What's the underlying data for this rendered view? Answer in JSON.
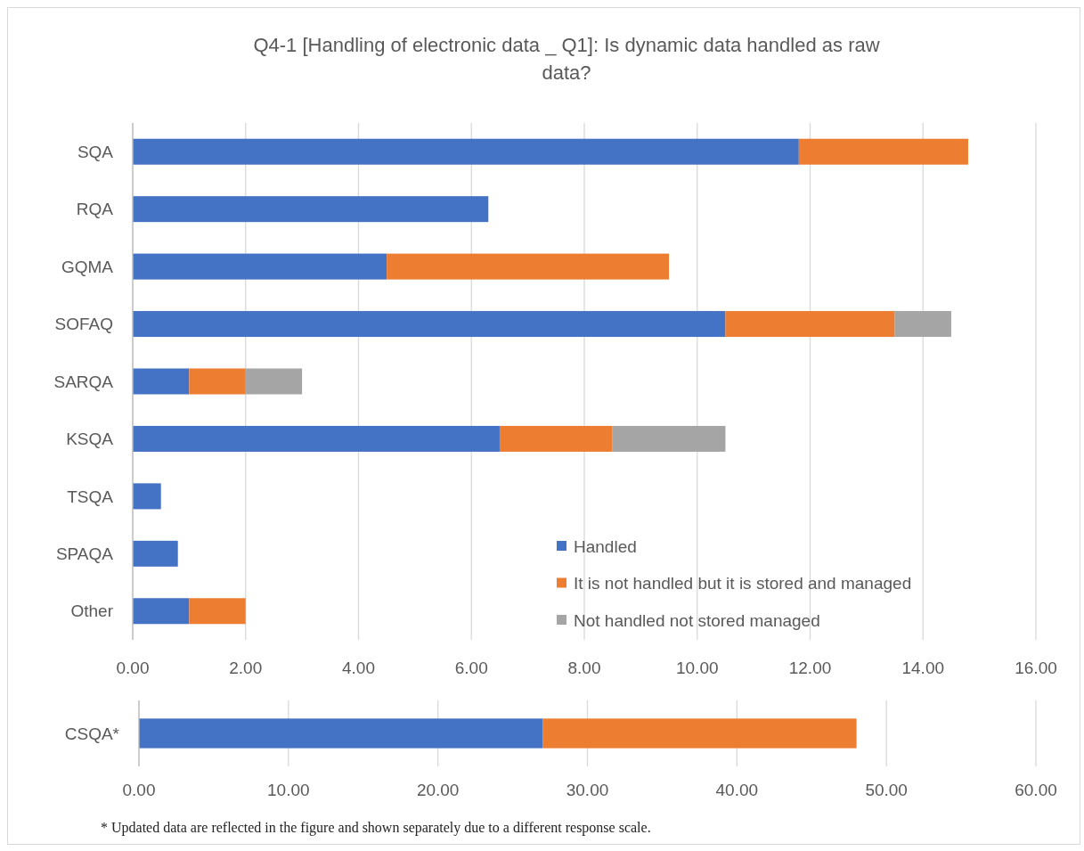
{
  "chart_data": [
    {
      "type": "bar",
      "orientation": "horizontal",
      "stacked": true,
      "title": "Q4-1 [Handling of electronic data _ Q1]: Is dynamic data handled as raw data?",
      "categories": [
        "SQA",
        "RQA",
        "GQMA",
        "SOFAQ",
        "SARQA",
        "KSQA",
        "TSQA",
        "SPAQA",
        "Other"
      ],
      "series": [
        {
          "name": "Handled",
          "color": "#4472c4",
          "values": [
            11.8,
            6.3,
            4.5,
            10.5,
            1,
            6.5,
            0.5,
            0.8,
            1
          ]
        },
        {
          "name": "It is not handled but it is stored and managed",
          "color": "#ed7d31",
          "values": [
            3,
            null,
            5,
            3,
            1,
            2,
            null,
            null,
            1
          ]
        },
        {
          "name": "Not handled not stored  managed",
          "color": "#a5a5a5",
          "values": [
            null,
            null,
            null,
            1,
            1,
            2,
            null,
            null,
            null
          ]
        }
      ],
      "xlim": [
        0,
        16
      ],
      "xticks": [
        {
          "value": 0,
          "label": "0.00"
        },
        {
          "value": 2,
          "label": "2.00"
        },
        {
          "value": 4,
          "label": "4.00"
        },
        {
          "value": 6,
          "label": "6.00"
        },
        {
          "value": 8,
          "label": "8.00"
        },
        {
          "value": 10,
          "label": "10.00"
        },
        {
          "value": 12,
          "label": "12.00"
        },
        {
          "value": 14,
          "label": "14.00"
        },
        {
          "value": 16,
          "label": "16.00"
        }
      ],
      "grid": "x",
      "legend": "bottom right"
    },
    {
      "type": "bar",
      "orientation": "horizontal",
      "stacked": true,
      "categories": [
        "CSQA*"
      ],
      "series": [
        {
          "color": "#4472c4",
          "values": [
            27
          ]
        },
        {
          "color": "#ed7d31",
          "values": [
            21
          ]
        }
      ],
      "xlim": [
        0,
        60
      ],
      "xticks": [
        {
          "value": 0,
          "label": "0.00"
        },
        {
          "value": 10,
          "label": "10.00"
        },
        {
          "value": 20,
          "label": "20.00"
        },
        {
          "value": 30,
          "label": "30.00"
        },
        {
          "value": 40,
          "label": "40.00"
        },
        {
          "value": 50,
          "label": "50.00"
        },
        {
          "value": 60,
          "label": "60.00"
        }
      ],
      "grid": "x",
      "annotations": [
        "* Updated data are reflected in the figure and shown separately due to a different response scale."
      ]
    }
  ]
}
